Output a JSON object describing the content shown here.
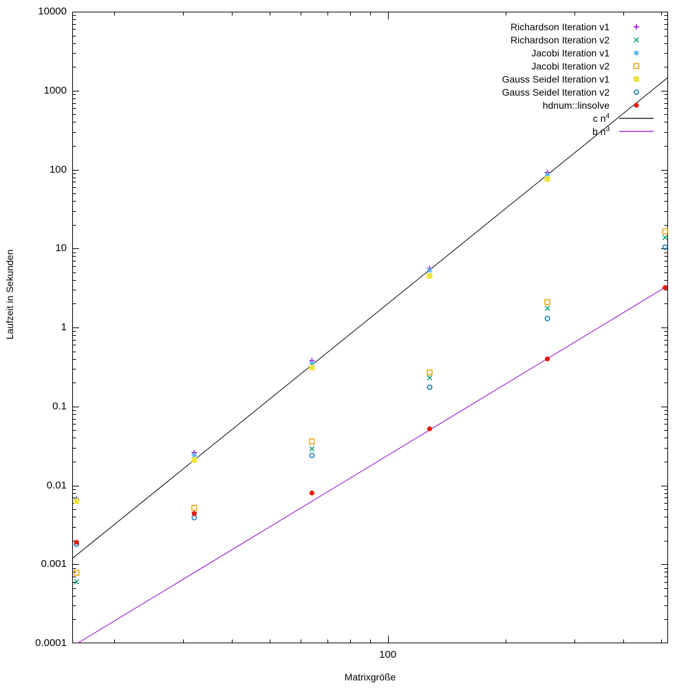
{
  "figure": {
    "background": "#ffffff",
    "border_color": "#000000",
    "text_color": "#000000"
  },
  "chart_data": {
    "type": "scatter",
    "title": "",
    "xlabel": "Matrixgröße",
    "ylabel": "Laufzeit in Sekunden",
    "x_scale": "log",
    "y_scale": "log",
    "xlim": [
      15.6,
      521
    ],
    "ylim": [
      0.0001,
      10000
    ],
    "grid": false,
    "legend_position": "top-right-inside",
    "x": [
      16,
      32,
      64,
      128,
      256,
      512
    ],
    "series": [
      {
        "name": "Richardson Iteration v1",
        "marker": "plus",
        "color": "#9400d3",
        "values": [
          0.0068,
          0.026,
          0.38,
          5.6,
          92,
          null
        ]
      },
      {
        "name": "Richardson Iteration v2",
        "marker": "cross",
        "color": "#009e73",
        "values": [
          0.0006,
          0.0043,
          0.029,
          0.23,
          1.75,
          13.8
        ]
      },
      {
        "name": "Jacobi Iteration v1",
        "marker": "asterisk",
        "color": "#56b4e9",
        "values": [
          0.0066,
          0.024,
          0.35,
          5.3,
          86,
          null
        ]
      },
      {
        "name": "Jacobi Iteration v2",
        "marker": "square-open",
        "color": "#e69f00",
        "values": [
          0.00078,
          0.0052,
          0.036,
          0.27,
          2.1,
          16.5
        ]
      },
      {
        "name": "Gauss Seidel Iteration v1",
        "marker": "square-filled",
        "color": "#f0e442",
        "values": [
          0.0063,
          0.021,
          0.31,
          4.5,
          76,
          null
        ]
      },
      {
        "name": "Gauss Seidel Iteration v2",
        "marker": "circle-open",
        "color": "#0072b2",
        "values": [
          0.0018,
          0.0039,
          0.024,
          0.175,
          1.3,
          10.4
        ]
      },
      {
        "name": "hdnum::linsolve",
        "marker": "circle-filled",
        "color": "#e51e10",
        "values": [
          0.0019,
          0.0044,
          0.008,
          0.052,
          0.4,
          3.2
        ]
      }
    ],
    "reference_lines": [
      {
        "label": "c n",
        "sup": "4",
        "color": "#000000",
        "coeff": 2e-08,
        "exponent": 4
      },
      {
        "label": "b n",
        "sup": "3",
        "color": "#9400d3",
        "coeff": 2.4e-08,
        "exponent": 3
      }
    ],
    "y_tick_labels": [
      {
        "value": 10000,
        "label": "10000"
      },
      {
        "value": 1000,
        "label": "1000"
      },
      {
        "value": 100,
        "label": "100"
      },
      {
        "value": 10,
        "label": "10"
      },
      {
        "value": 1,
        "label": "1"
      },
      {
        "value": 0.1,
        "label": "0.1"
      },
      {
        "value": 0.01,
        "label": "0.01"
      },
      {
        "value": 0.001,
        "label": "0.001"
      },
      {
        "value": 0.0001,
        "label": "0.0001"
      }
    ],
    "x_tick_labels": [
      {
        "value": 100,
        "label": "100"
      }
    ],
    "x_minor_ticks": [
      20,
      30,
      40,
      50,
      60,
      70,
      80,
      90,
      200,
      300,
      400,
      500
    ],
    "y_minor_tick_multipliers": [
      2,
      3,
      4,
      5,
      6,
      7,
      8,
      9
    ]
  }
}
